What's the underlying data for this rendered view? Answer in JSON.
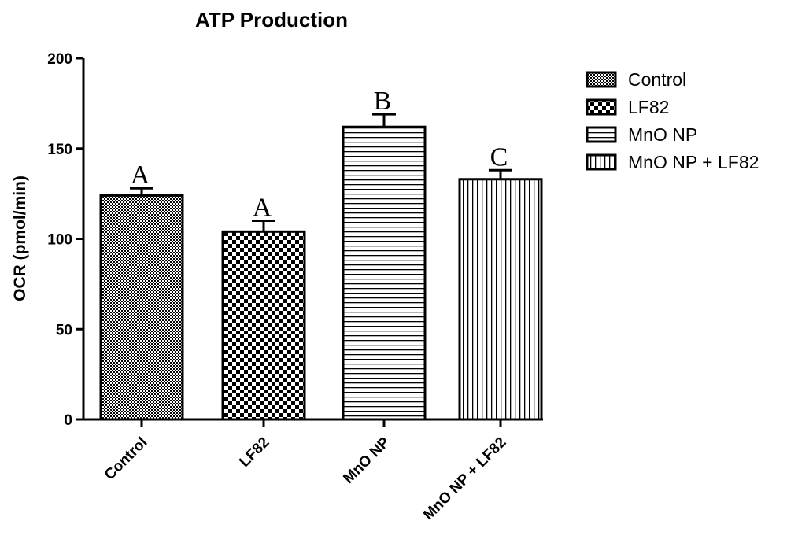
{
  "chart_data": {
    "type": "bar",
    "title": "ATP Production",
    "xlabel": "",
    "ylabel": "OCR (pmol/min)",
    "ylim": [
      0,
      200
    ],
    "yticks": [
      0,
      50,
      100,
      150,
      200
    ],
    "categories": [
      "Control",
      "LF82",
      "MnO NP",
      "MnO NP + LF82"
    ],
    "values": [
      124,
      104,
      162,
      133
    ],
    "errors": [
      4,
      6,
      7,
      5
    ],
    "significance_labels": [
      "A",
      "A",
      "B",
      "C"
    ],
    "patterns": [
      "fine-checker",
      "checker",
      "horizontal-lines",
      "vertical-lines"
    ],
    "legend": {
      "position": "right",
      "entries": [
        "Control",
        "LF82",
        "MnO NP",
        "MnO NP + LF82"
      ]
    },
    "grid": false,
    "colors": {
      "bar_stroke": "#000000",
      "bar_fill": "#ffffff"
    }
  }
}
